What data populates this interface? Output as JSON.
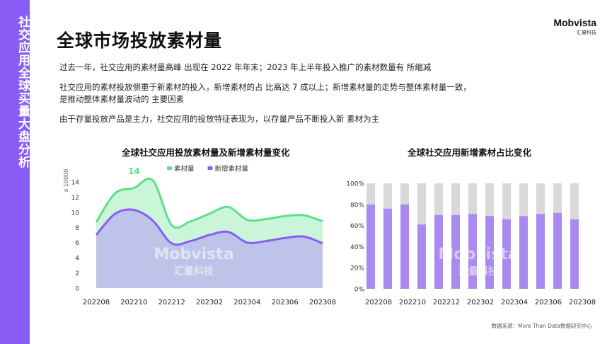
{
  "sidebar": {
    "title": "社交应用全球买量大盘分析"
  },
  "header": {
    "title": "全球市场投放素材量",
    "logo": "Mobvista",
    "logo_sub": "汇量科技"
  },
  "paragraphs": [
    "过去一年，社交应用的素材量高峰 出现在 2022 年年末；2023 年上半年投入推广的素材数量有 所缩减",
    "社交应用的素材投放侧重于新素材的投入，新增素材的占 比高达 7 成以上；新增素材量的走势与整体素材量一致，",
    "是推动整体素材量波动的 主要因素",
    "由于存量投放产品是主力，社交应用的投放特征表现为，以存量产品不断投入新  素材为主"
  ],
  "watermark": {
    "brand": "Mobvista",
    "sub": "汇量科技"
  },
  "source": "数据来源：More Than Data数据研究中心",
  "colors": {
    "accent": "#8a5cf6",
    "green": "#5ee08a",
    "purple": "#8a5cf6",
    "gray": "#d9d9d9"
  },
  "chart_data": [
    {
      "type": "area",
      "title": "全球社交应用投放素材量及新增素材量变化",
      "ylabel": "x 10000",
      "ylim": [
        0,
        14
      ],
      "yticks": [
        0,
        2,
        4,
        6,
        8,
        10,
        12,
        14
      ],
      "x_tick_labels": [
        "202208",
        "202210",
        "202212",
        "202302",
        "202304",
        "202306",
        "202308"
      ],
      "x": [
        "202208",
        "202209",
        "202210",
        "202211",
        "202212",
        "202301",
        "202302",
        "202303",
        "202304",
        "202305",
        "202306",
        "202307",
        "202308"
      ],
      "legend_position": "top",
      "annotations": [
        {
          "x": "202210",
          "label": "14"
        }
      ],
      "series": [
        {
          "name": "素材量",
          "color": "#5ee08a",
          "values": [
            8.7,
            12.5,
            13.2,
            14.2,
            8.3,
            8.8,
            9.8,
            10.7,
            9.0,
            9.1,
            9.5,
            9.6,
            8.8
          ]
        },
        {
          "name": "新增素材量",
          "color": "#8a5cf6",
          "values": [
            7.0,
            9.8,
            10.3,
            8.9,
            5.9,
            6.2,
            7.0,
            7.4,
            6.0,
            6.2,
            6.6,
            6.8,
            5.9
          ]
        }
      ]
    },
    {
      "type": "bar",
      "stacked": true,
      "title": "全球社交应用新增素材占比变化",
      "ylim": [
        0,
        100
      ],
      "yticks": [
        "0%",
        "20%",
        "40%",
        "60%",
        "80%",
        "100%"
      ],
      "x_tick_labels": [
        "202208",
        "202210",
        "202212",
        "202302",
        "202304",
        "202306",
        "202308"
      ],
      "x": [
        "202208",
        "202209",
        "202210",
        "202211",
        "202212",
        "202301",
        "202302",
        "202303",
        "202304",
        "202305",
        "202306",
        "202307",
        "202308"
      ],
      "values": [
        80,
        76,
        80,
        61,
        70,
        70,
        71,
        69,
        66,
        69,
        71,
        72,
        66
      ]
    }
  ]
}
